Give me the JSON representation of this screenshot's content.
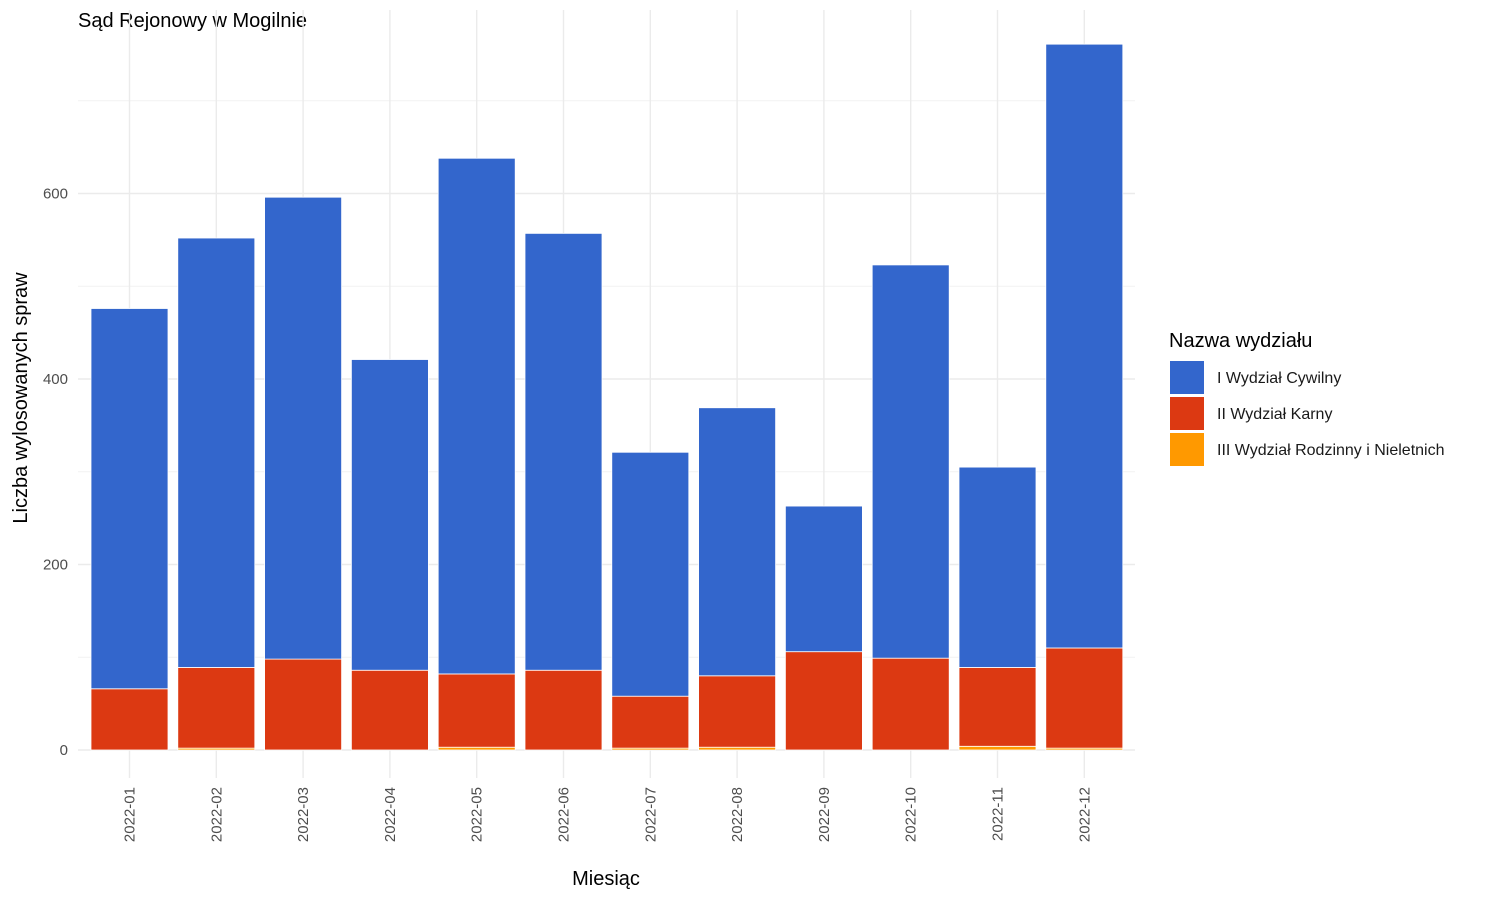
{
  "chart_data": {
    "type": "bar",
    "stacked": true,
    "title": "Sąd Rejonowy w Mogilnie",
    "xlabel": "Miesiąc",
    "ylabel": "Liczba wylosowanych spraw",
    "ylim": [
      0,
      800
    ],
    "yticks": [
      0,
      200,
      400,
      600
    ],
    "grid": true,
    "legend_position": "right",
    "legend_title": "Nazwa wydziału",
    "categories": [
      "2022-01",
      "2022-02",
      "2022-03",
      "2022-04",
      "2022-05",
      "2022-06",
      "2022-07",
      "2022-08",
      "2022-09",
      "2022-10",
      "2022-11",
      "2022-12"
    ],
    "series": [
      {
        "name": "III Wydział Rodzinny i Nieletnich",
        "color": "#ff9900",
        "values": [
          0,
          2,
          0,
          0,
          3,
          0,
          2,
          3,
          0,
          0,
          4,
          2
        ]
      },
      {
        "name": "II Wydział Karny",
        "color": "#dc3912",
        "values": [
          66,
          87,
          98,
          86,
          79,
          86,
          56,
          77,
          106,
          99,
          85,
          108
        ]
      },
      {
        "name": "I Wydział Cywilny",
        "color": "#3366cc",
        "values": [
          410,
          463,
          498,
          335,
          556,
          471,
          263,
          289,
          157,
          424,
          216,
          651
        ]
      }
    ],
    "legend_order": [
      "I Wydział Cywilny",
      "II Wydział Karny",
      "III Wydział Rodzinny i Nieletnich"
    ]
  }
}
